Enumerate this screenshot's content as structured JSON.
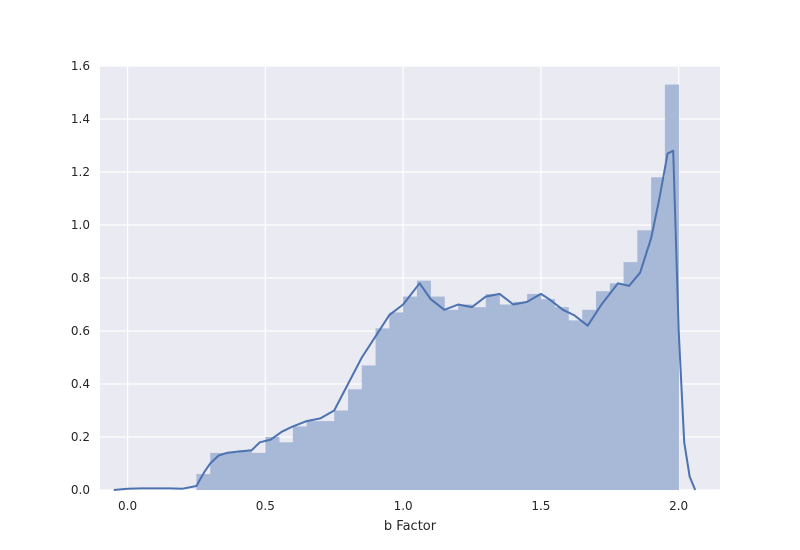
{
  "chart_data": {
    "type": "histogram",
    "xlabel": "b Factor",
    "ylabel": "",
    "title": "",
    "xlim": [
      -0.1,
      2.15
    ],
    "ylim": [
      0,
      1.6
    ],
    "xticks": [
      0.0,
      0.5,
      1.0,
      1.5,
      2.0
    ],
    "xtick_labels": [
      "0.0",
      "0.5",
      "1.0",
      "1.5",
      "2.0"
    ],
    "yticks": [
      0.0,
      0.2,
      0.4,
      0.6,
      0.8,
      1.0,
      1.2,
      1.4,
      1.6
    ],
    "ytick_labels": [
      "0.0",
      "0.2",
      "0.4",
      "0.6",
      "0.8",
      "1.0",
      "1.2",
      "1.4",
      "1.6"
    ],
    "grid": true,
    "colors": {
      "background": "#eaeaf2",
      "grid": "#ffffff",
      "bars": "#a8b8d7",
      "kde_line": "#4c72b0",
      "text": "#262626"
    },
    "bins": {
      "edges": [
        0.25,
        0.3,
        0.35,
        0.4,
        0.45,
        0.5,
        0.55,
        0.6,
        0.65,
        0.7,
        0.75,
        0.8,
        0.85,
        0.9,
        0.95,
        1.0,
        1.05,
        1.1,
        1.15,
        1.2,
        1.25,
        1.3,
        1.35,
        1.4,
        1.45,
        1.5,
        1.55,
        1.6,
        1.65,
        1.7,
        1.75,
        1.8,
        1.85,
        1.9,
        1.95,
        2.0
      ],
      "heights": [
        0.06,
        0.14,
        0.14,
        0.15,
        0.14,
        0.2,
        0.18,
        0.24,
        0.26,
        0.26,
        0.3,
        0.38,
        0.47,
        0.61,
        0.67,
        0.73,
        0.79,
        0.73,
        0.68,
        0.7,
        0.69,
        0.74,
        0.7,
        0.71,
        0.74,
        0.72,
        0.69,
        0.64,
        0.68,
        0.75,
        0.78,
        0.86,
        0.98,
        1.18,
        1.53
      ]
    },
    "kde": {
      "x": [
        -0.05,
        0.0,
        0.05,
        0.1,
        0.15,
        0.2,
        0.25,
        0.28,
        0.3,
        0.33,
        0.36,
        0.4,
        0.45,
        0.48,
        0.52,
        0.56,
        0.6,
        0.65,
        0.7,
        0.75,
        0.8,
        0.85,
        0.9,
        0.95,
        1.0,
        1.03,
        1.06,
        1.1,
        1.15,
        1.2,
        1.25,
        1.3,
        1.35,
        1.4,
        1.45,
        1.5,
        1.53,
        1.58,
        1.62,
        1.67,
        1.72,
        1.78,
        1.82,
        1.86,
        1.9,
        1.93,
        1.96,
        1.98,
        2.0,
        2.02,
        2.04,
        2.06
      ],
      "y": [
        0.0,
        0.005,
        0.006,
        0.006,
        0.006,
        0.005,
        0.015,
        0.07,
        0.1,
        0.13,
        0.14,
        0.145,
        0.15,
        0.18,
        0.19,
        0.22,
        0.24,
        0.26,
        0.27,
        0.3,
        0.4,
        0.5,
        0.58,
        0.66,
        0.7,
        0.74,
        0.78,
        0.72,
        0.68,
        0.7,
        0.69,
        0.73,
        0.74,
        0.7,
        0.71,
        0.74,
        0.72,
        0.68,
        0.66,
        0.62,
        0.7,
        0.78,
        0.77,
        0.82,
        0.95,
        1.1,
        1.27,
        1.28,
        0.6,
        0.18,
        0.05,
        0.0
      ]
    }
  }
}
